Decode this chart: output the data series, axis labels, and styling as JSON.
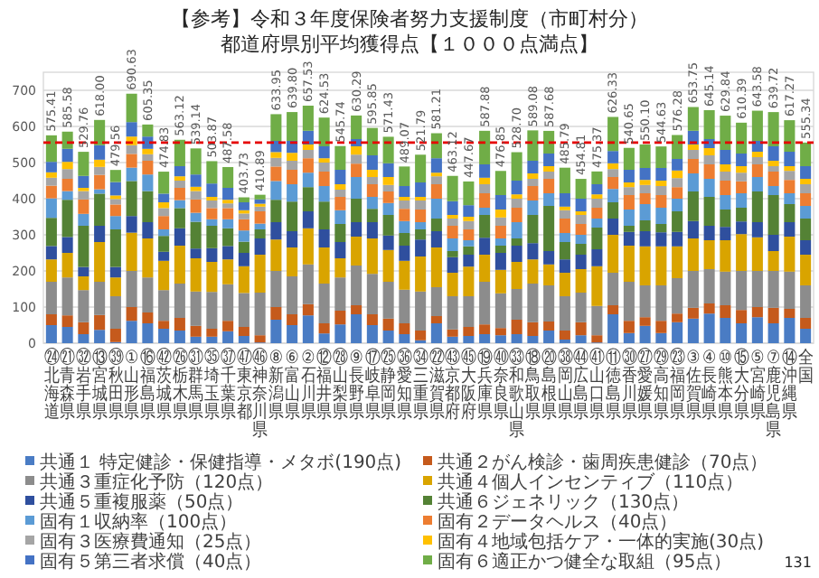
{
  "chart_data": {
    "type": "bar",
    "stacked": true,
    "title": "【参考】令和３年度保険者努力支援制度（市町村分）",
    "subtitle": "都道府県別平均獲得点【１０００点満点】",
    "categories": [
      "㉔北海道",
      "㉑青森県",
      "㉜岩手県",
      "⑬宮城県",
      "㊴秋田県",
      "①山形県",
      "⑯福島県",
      "㊷茨城県",
      "㉖栃木県",
      "㉛群馬県",
      "㉟埼玉県",
      "㊲千葉県",
      "㊼東京都",
      "㊻神奈川県",
      "⑧新潟県",
      "⑥富山県",
      "②石川県",
      "⑫福井県",
      "㉘山梨県",
      "⑨長野県",
      "⑰岐阜県",
      "㉕静岡県",
      "㊱愛知県",
      "㉞三重県",
      "㉒滋賀県",
      "㊸京都府",
      "㊺大阪府",
      "⑲兵庫県",
      "㊵奈良県",
      "㉝和歌山県",
      "⑱鳥取県",
      "⑳島根県",
      "㊳岡山県",
      "㊹広島県",
      "㊶山口県",
      "⑪徳島県",
      "㉚香川県",
      "㉗愛媛県",
      "㉙高知県",
      "㉓福岡県",
      "③佐賀県",
      "④長崎県",
      "⑩熊本県",
      "⑮大分県",
      "⑤宮崎県",
      "⑦鹿児島県",
      "⑭沖縄県",
      "全国"
    ],
    "series": [
      {
        "name": "共通１ 特定健診・保健指導・メタボ(190点)",
        "color": "#4a7cc4",
        "values": [
          50,
          45,
          25,
          37,
          3,
          62,
          55,
          40,
          35,
          18,
          18,
          33,
          20,
          2,
          65,
          50,
          77,
          27,
          52,
          80,
          50,
          35,
          25,
          8,
          55,
          18,
          20,
          25,
          22,
          25,
          20,
          35,
          10,
          22,
          2,
          80,
          28,
          48,
          28,
          58,
          68,
          82,
          70,
          55,
          72,
          55,
          70,
          40
        ]
      },
      {
        "name": "共通２がん検診・歯周疾患健診（70点）",
        "color": "#c55a1c",
        "values": [
          30,
          32,
          33,
          41,
          37,
          38,
          30,
          22,
          35,
          30,
          22,
          29,
          25,
          20,
          35,
          30,
          31,
          28,
          38,
          25,
          30,
          33,
          30,
          27,
          20,
          20,
          25,
          27,
          20,
          40,
          38,
          25,
          25,
          36,
          20,
          25,
          34,
          24,
          34,
          24,
          30,
          28,
          35,
          37,
          28,
          43,
          25,
          30
        ]
      },
      {
        "name": "共通３重症化予防（120点）",
        "color": "#8c8c8c",
        "values": [
          90,
          105,
          89,
          92,
          90,
          100,
          97,
          85,
          95,
          95,
          102,
          101,
          94,
          118,
          100,
          105,
          110,
          110,
          92,
          110,
          112,
          102,
          93,
          108,
          80,
          92,
          85,
          118,
          96,
          85,
          107,
          100,
          95,
          82,
          81,
          90,
          108,
          88,
          98,
          98,
          102,
          95,
          93,
          108,
          100,
          102,
          103,
          90
        ]
      },
      {
        "name": "共通４個人インセンティブ（110点）",
        "color": "#d9a400",
        "values": [
          62,
          68,
          38,
          110,
          52,
          106,
          108,
          81,
          105,
          92,
          83,
          69,
          74,
          105,
          87,
          80,
          100,
          100,
          53,
          80,
          98,
          88,
          80,
          97,
          110,
          65,
          82,
          75,
          65,
          75,
          67,
          58,
          65,
          65,
          110,
          105,
          100,
          108,
          108,
          88,
          90,
          80,
          87,
          102,
          93,
          55,
          97,
          85
        ]
      },
      {
        "name": "共通５重複服薬（50点）",
        "color": "#2f4f9e",
        "values": [
          37,
          44,
          26,
          45,
          29,
          46,
          45,
          25,
          48,
          27,
          38,
          37,
          37,
          45,
          48,
          45,
          47,
          50,
          45,
          40,
          45,
          40,
          42,
          47,
          45,
          43,
          33,
          47,
          47,
          45,
          45,
          37,
          37,
          40,
          47,
          45,
          38,
          42,
          39,
          40,
          48,
          40,
          37,
          35,
          42,
          45,
          40,
          40
        ]
      },
      {
        "name": "共通６ジェネリック（130点）",
        "color": "#548235",
        "values": [
          78,
          103,
          114,
          89,
          104,
          97,
          86,
          44,
          56,
          74,
          62,
          49,
          31,
          25,
          62,
          82,
          67,
          77,
          50,
          65,
          37,
          57,
          35,
          28,
          35,
          17,
          23,
          63,
          20,
          20,
          78,
          125,
          48,
          30,
          60,
          45,
          17,
          30,
          23,
          57,
          82,
          80,
          48,
          38,
          85,
          110,
          50,
          60
        ]
      },
      {
        "name": "固有１収納率（100点）",
        "color": "#5b9bd5",
        "values": [
          54,
          24,
          33,
          12,
          37,
          37,
          46,
          18,
          22,
          25,
          18,
          25,
          31,
          16,
          52,
          48,
          40,
          43,
          38,
          60,
          33,
          33,
          33,
          20,
          55,
          35,
          17,
          20,
          20,
          45,
          40,
          35,
          25,
          25,
          25,
          37,
          45,
          45,
          45,
          35,
          50,
          50,
          40,
          40,
          40,
          25,
          30,
          35
        ]
      },
      {
        "name": "固有２データヘルス（40点）",
        "color": "#ed7d31",
        "values": [
          35,
          34,
          40,
          40,
          32,
          38,
          38,
          37,
          34,
          37,
          31,
          31,
          31,
          34,
          40,
          40,
          40,
          40,
          37,
          37,
          35,
          32,
          34,
          35,
          40,
          35,
          30,
          40,
          35,
          40,
          40,
          40,
          40,
          30,
          30,
          33,
          40,
          30,
          35,
          32,
          40,
          40,
          40,
          33,
          35,
          40,
          37,
          35
        ]
      },
      {
        "name": "固有３医療費通知（25点）",
        "color": "#a5a5a5",
        "values": [
          22,
          27,
          23,
          22,
          15,
          24,
          18,
          22,
          20,
          23,
          21,
          13,
          16,
          13,
          24,
          25,
          23,
          25,
          20,
          25,
          20,
          18,
          23,
          25,
          22,
          20,
          23,
          25,
          23,
          25,
          20,
          20,
          23,
          25,
          25,
          22,
          22,
          23,
          25,
          25,
          25,
          25,
          25,
          24,
          20,
          15,
          25,
          25
        ]
      },
      {
        "name": "固有４地域包括ケア・一体的実施(30点)",
        "color": "#ffc000",
        "values": [
          15,
          20,
          9,
          20,
          10,
          24,
          15,
          16,
          12,
          12,
          10,
          10,
          9,
          8,
          16,
          22,
          15,
          12,
          15,
          23,
          20,
          22,
          10,
          10,
          10,
          10,
          12,
          18,
          22,
          12,
          15,
          15,
          10,
          10,
          12,
          16,
          13,
          14,
          15,
          21,
          15,
          20,
          20,
          18,
          15,
          15,
          13,
          15
        ]
      },
      {
        "name": "固有５第三者求償（40点）",
        "color": "#4472c4",
        "values": [
          29,
          36,
          33,
          40,
          37,
          40,
          34,
          24,
          28,
          34,
          37,
          33,
          22,
          12,
          31,
          33,
          38,
          33,
          40,
          20,
          40,
          38,
          30,
          40,
          40,
          38,
          32,
          37,
          40,
          38,
          35,
          35,
          37,
          35,
          28,
          34,
          35,
          33,
          35,
          32,
          38,
          25,
          40,
          35,
          30,
          40,
          40,
          35
        ]
      },
      {
        "name": "固有６適正かつ健全な取組（95点）",
        "color": "#70ad47",
        "values": [
          73.41,
          47.58,
          66.76,
          70,
          33.56,
          78.63,
          33.35,
          60.83,
          73.12,
          72.14,
          61.87,
          57.58,
          13.73,
          12.89,
          73.95,
          79.8,
          69.53,
          79.53,
          65.74,
          65.29,
          75.85,
          73.43,
          54.07,
          76.79,
          69.21,
          70.12,
          65.67,
          92.88,
          66.85,
          78.7,
          84.08,
          62.68,
          70.79,
          54.81,
          35.37,
          94.33,
          60.65,
          65.1,
          59.63,
          66.28,
          65.75,
          80.14,
          94.84,
          85.39,
          83.58,
          94.72,
          87.27,
          65.34
        ]
      }
    ],
    "totals": [
      "575.41",
      "585.58",
      "529.76",
      "618.00",
      "479.56",
      "690.63",
      "605.35",
      "474.83",
      "563.12",
      "539.14",
      "503.87",
      "487.58",
      "403.73",
      "410.89",
      "633.95",
      "639.80",
      "657.53",
      "624.53",
      "545.74",
      "630.29",
      "595.85",
      "571.43",
      "489.07",
      "521.79",
      "581.21",
      "463.12",
      "447.67",
      "587.88",
      "476.85",
      "528.70",
      "589.08",
      "587.68",
      "485.79",
      "454.81",
      "475.37",
      "626.33",
      "540.65",
      "550.10",
      "544.63",
      "576.28",
      "653.75",
      "645.14",
      "629.84",
      "610.39",
      "643.58",
      "639.72",
      "617.27",
      "555.34"
    ],
    "ylim": [
      0,
      750
    ],
    "yticks": [
      0,
      100,
      200,
      300,
      400,
      500,
      600,
      700
    ],
    "grid": "y",
    "legend": "bottom",
    "ref_lines": [
      {
        "axis": "y",
        "value": 555.34,
        "color": "#e60000",
        "line_style": "dashed"
      }
    ],
    "annotations": [
      "131"
    ]
  }
}
